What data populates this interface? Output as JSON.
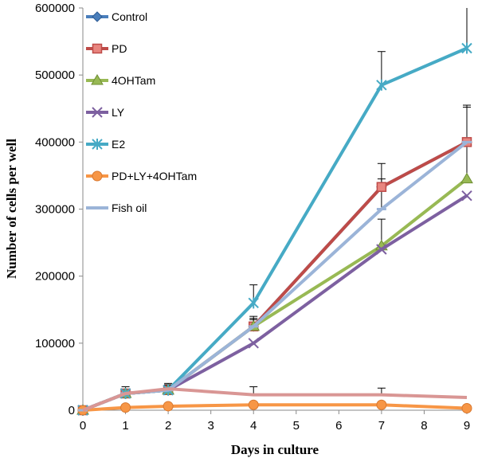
{
  "chart_data": {
    "type": "line",
    "xlabel": "Days in culture",
    "ylabel": "Number of cells per well",
    "xlim": [
      0,
      9
    ],
    "ylim": [
      0,
      600000
    ],
    "x_ticks": [
      0,
      1,
      2,
      3,
      4,
      5,
      6,
      7,
      8,
      9
    ],
    "y_ticks": [
      0,
      100000,
      200000,
      300000,
      400000,
      500000,
      600000
    ],
    "grid": false,
    "legend_position": "top-left",
    "series": [
      {
        "name": "Control",
        "color": "#4a7ebb",
        "marker": "diamond",
        "points": [
          [
            0,
            0
          ],
          [
            1,
            25000
          ],
          [
            2,
            30000
          ],
          [
            4,
            125000
          ],
          [
            7,
            333000
          ],
          [
            9,
            400000
          ]
        ],
        "error": [
          0,
          0,
          0,
          0,
          0,
          0
        ]
      },
      {
        "name": "PD",
        "color": "#be4b48",
        "marker": "square",
        "points": [
          [
            0,
            0
          ],
          [
            1,
            25000
          ],
          [
            2,
            30000
          ],
          [
            4,
            125000
          ],
          [
            7,
            333000
          ],
          [
            9,
            400000
          ]
        ],
        "error": [
          0,
          0,
          8000,
          12000,
          35000,
          55000
        ]
      },
      {
        "name": "4OHTam",
        "color": "#98b954",
        "marker": "triangle",
        "points": [
          [
            0,
            0
          ],
          [
            1,
            25000
          ],
          [
            2,
            30000
          ],
          [
            4,
            125000
          ],
          [
            7,
            245000
          ],
          [
            9,
            345000
          ]
        ],
        "error": [
          0,
          0,
          6000,
          10000,
          40000,
          55000
        ]
      },
      {
        "name": "LY",
        "color": "#7d60a0",
        "marker": "x",
        "points": [
          [
            0,
            0
          ],
          [
            1,
            25000
          ],
          [
            2,
            30000
          ],
          [
            4,
            100000
          ],
          [
            7,
            240000
          ],
          [
            9,
            320000
          ]
        ],
        "error": [
          0,
          0,
          0,
          0,
          0,
          0
        ]
      },
      {
        "name": "E2",
        "color": "#46aac5",
        "marker": "star",
        "points": [
          [
            0,
            0
          ],
          [
            1,
            25000
          ],
          [
            2,
            30000
          ],
          [
            4,
            160000
          ],
          [
            7,
            485000
          ],
          [
            9,
            540000
          ]
        ],
        "error": [
          0,
          0,
          8000,
          27000,
          50000,
          62000
        ]
      },
      {
        "name": "PD+LY+4OHTam",
        "color": "#f79646",
        "marker": "circle",
        "points": [
          [
            0,
            0
          ],
          [
            1,
            4000
          ],
          [
            2,
            6000
          ],
          [
            4,
            8000
          ],
          [
            7,
            8000
          ],
          [
            9,
            3000
          ]
        ],
        "error": [
          0,
          0,
          0,
          0,
          0,
          0
        ]
      },
      {
        "name": "Fish oil",
        "color": "#9bb4d8",
        "marker": "dash",
        "points": [
          [
            0,
            0
          ],
          [
            1,
            25000
          ],
          [
            2,
            30000
          ],
          [
            4,
            125000
          ],
          [
            7,
            300000
          ],
          [
            9,
            400000
          ]
        ],
        "error": [
          0,
          0,
          0,
          15000,
          45000,
          52000
        ]
      },
      {
        "name": "",
        "color": "#d99694",
        "marker": "none",
        "in_legend": false,
        "points": [
          [
            0,
            0
          ],
          [
            1,
            25000
          ],
          [
            2,
            32000
          ],
          [
            4,
            23000
          ],
          [
            7,
            23000
          ],
          [
            9,
            19000
          ]
        ],
        "error": [
          0,
          10000,
          8000,
          12000,
          10000,
          0
        ]
      }
    ]
  }
}
